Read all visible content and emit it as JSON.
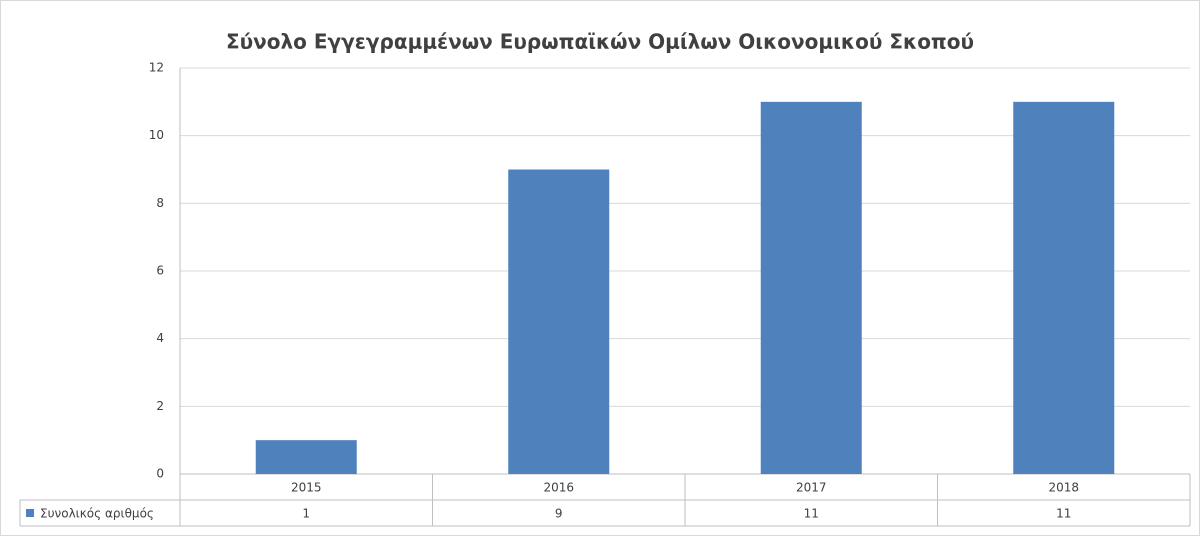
{
  "chart_data": {
    "type": "bar",
    "title": "Σύνολο Εγγεγραμμένων Ευρωπαϊκών Ομίλων Οικονομικού Σκοπού",
    "categories": [
      "2015",
      "2016",
      "2017",
      "2018"
    ],
    "series": [
      {
        "name": "Συνολικός αριθμός",
        "color": "#4f81bd",
        "values": [
          1,
          9,
          11,
          11
        ]
      }
    ],
    "ylim": [
      0,
      12
    ],
    "yticks": [
      0,
      2,
      4,
      6,
      8,
      10,
      12
    ],
    "grid": true
  }
}
